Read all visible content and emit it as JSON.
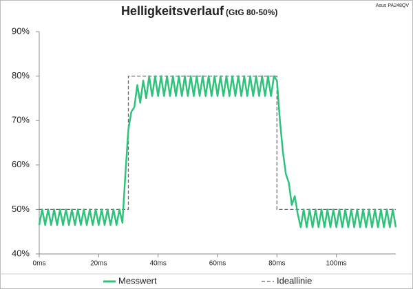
{
  "chart_data": {
    "type": "line",
    "title": "Helligkeitsverlauf",
    "subtitle": "(GtG 80-50%)",
    "annotation": "Asus PA248QV",
    "xlim": [
      0,
      120
    ],
    "ylim": [
      40,
      90
    ],
    "xticks": [
      {
        "value": 0,
        "label": "0ms"
      },
      {
        "value": 20,
        "label": "20ms"
      },
      {
        "value": 40,
        "label": "40ms"
      },
      {
        "value": 60,
        "label": "60ms"
      },
      {
        "value": 80,
        "label": "80ms"
      },
      {
        "value": 100,
        "label": "100ms"
      }
    ],
    "yticks": [
      {
        "value": 40,
        "label": "40%"
      },
      {
        "value": 50,
        "label": "50%"
      },
      {
        "value": 60,
        "label": "60%"
      },
      {
        "value": 70,
        "label": "70%"
      },
      {
        "value": 80,
        "label": "80%"
      },
      {
        "value": 90,
        "label": "90%"
      }
    ],
    "grid": false,
    "series": [
      {
        "name": "Messwert",
        "color": "#2ec27a",
        "dash": false,
        "x": [
          0,
          1,
          2,
          3,
          4,
          5,
          6,
          7,
          8,
          9,
          10,
          11,
          12,
          13,
          14,
          15,
          16,
          17,
          18,
          19,
          20,
          21,
          22,
          23,
          24,
          25,
          26,
          27,
          28,
          29,
          30,
          31,
          32,
          33,
          34,
          35,
          36,
          37,
          38,
          39,
          40,
          41,
          42,
          43,
          44,
          45,
          46,
          47,
          48,
          49,
          50,
          51,
          52,
          53,
          54,
          55,
          56,
          57,
          58,
          59,
          60,
          61,
          62,
          63,
          64,
          65,
          66,
          67,
          68,
          69,
          70,
          71,
          72,
          73,
          74,
          75,
          76,
          77,
          78,
          79,
          80,
          81,
          82,
          83,
          84,
          85,
          86,
          87,
          88,
          89,
          90,
          91,
          92,
          93,
          94,
          95,
          96,
          97,
          98,
          99,
          100,
          101,
          102,
          103,
          104,
          105,
          106,
          107,
          108,
          109,
          110,
          111,
          112,
          113,
          114,
          115,
          116,
          117,
          118,
          119,
          120
        ],
        "values": [
          46.5,
          50,
          46.5,
          50,
          46.5,
          50,
          46.5,
          50,
          46.5,
          50,
          46.5,
          50,
          46.5,
          50,
          46.5,
          50,
          46.5,
          50,
          46.5,
          50,
          46.5,
          50,
          46.5,
          50,
          46.5,
          50,
          46.5,
          50,
          47,
          58,
          68,
          72,
          73,
          78,
          74,
          79,
          75,
          80,
          75.5,
          80,
          75.5,
          80,
          75.5,
          80,
          75.5,
          80,
          75.5,
          80,
          75.5,
          80,
          75.5,
          80,
          75.5,
          80,
          75.5,
          80,
          75.5,
          80,
          75.5,
          80,
          75.5,
          80,
          75.5,
          80,
          75.5,
          80,
          75.5,
          80,
          75.5,
          80,
          75.5,
          80,
          75.5,
          80,
          75.5,
          80,
          75.5,
          80,
          75.5,
          80,
          79,
          70,
          63,
          58,
          56,
          51,
          53,
          49,
          46,
          50,
          46,
          50,
          46,
          50,
          46,
          50,
          46,
          50,
          46,
          50,
          46,
          50,
          46,
          50,
          46,
          50,
          46,
          50,
          46,
          50,
          46,
          50,
          46,
          50,
          46,
          50,
          46,
          50,
          46,
          50,
          46
        ]
      },
      {
        "name": "Ideallinie",
        "color": "#666666",
        "dash": true,
        "x": [
          0,
          30,
          30,
          80,
          80,
          120
        ],
        "values": [
          50,
          50,
          80,
          80,
          50,
          50
        ]
      }
    ]
  }
}
